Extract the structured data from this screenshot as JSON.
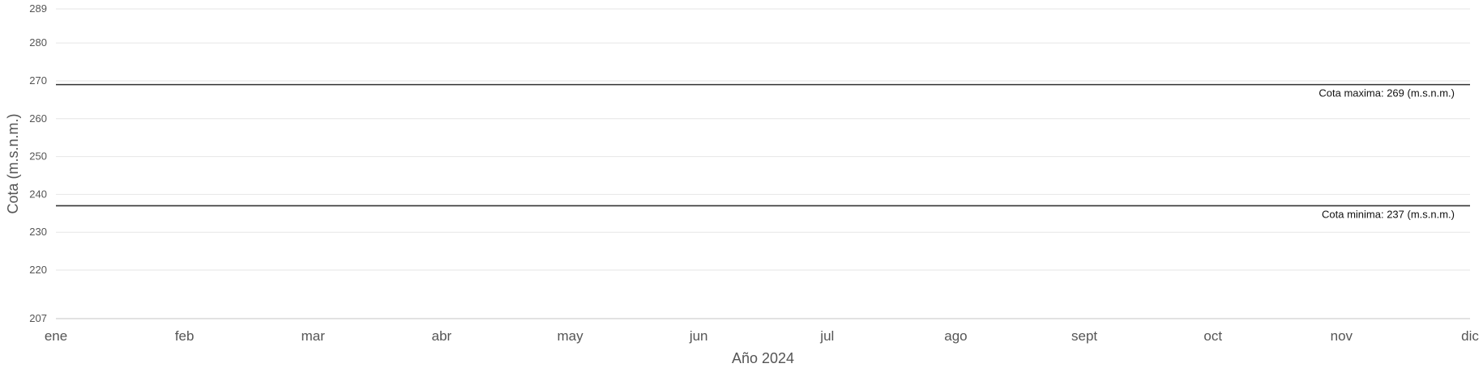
{
  "chart_data": {
    "type": "line",
    "title": "",
    "xlabel": "Año 2024",
    "ylabel": "Cota (m.s.n.m.)",
    "categories": [
      "ene",
      "feb",
      "mar",
      "abr",
      "may",
      "jun",
      "jul",
      "ago",
      "sept",
      "oct",
      "nov",
      "dic"
    ],
    "ylim": [
      207,
      289
    ],
    "yticks": [
      207,
      220,
      230,
      240,
      250,
      260,
      270,
      280,
      289
    ],
    "grid": true,
    "series": [],
    "plot_lines": [
      {
        "value": 269,
        "label": "Cota maxima: 269 (m.s.n.m.)",
        "color": "#333333"
      },
      {
        "value": 237,
        "label": "Cota minima: 237 (m.s.n.m.)",
        "color": "#333333"
      }
    ]
  }
}
